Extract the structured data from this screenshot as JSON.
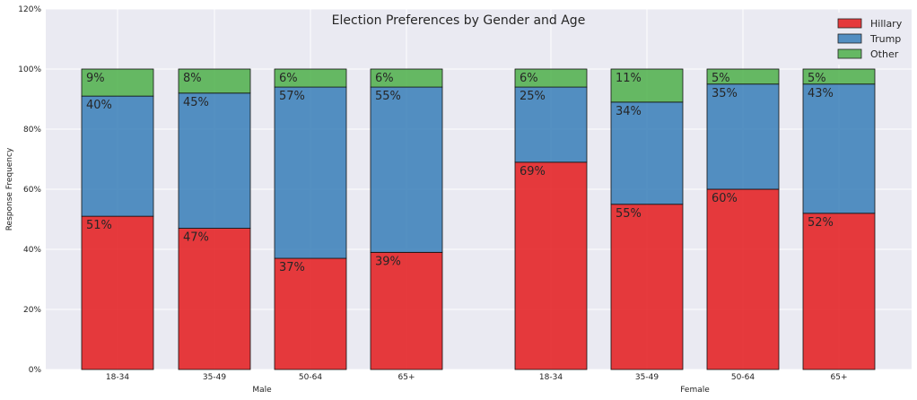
{
  "chart_data": {
    "type": "bar",
    "stacked": true,
    "title": "Election Preferences by Gender and Age",
    "ylabel": "Response Frequency",
    "ylim": [
      0,
      120
    ],
    "yticks": [
      0,
      20,
      40,
      60,
      80,
      100,
      120
    ],
    "ytick_labels": [
      "0%",
      "20%",
      "40%",
      "60%",
      "80%",
      "100%",
      "120%"
    ],
    "grid": true,
    "legend_position": "top-right",
    "groups": [
      {
        "name": "Male",
        "categories": [
          "18-34",
          "35-49",
          "50-64",
          "65+"
        ]
      },
      {
        "name": "Female",
        "categories": [
          "18-34",
          "35-49",
          "50-64",
          "65+"
        ]
      }
    ],
    "series": [
      {
        "name": "Hillary",
        "color": "#e41a1c",
        "values": [
          51,
          47,
          37,
          39,
          69,
          55,
          60,
          52
        ],
        "labels": [
          "51%",
          "47%",
          "37%",
          "39%",
          "69%",
          "55%",
          "60%",
          "52%"
        ]
      },
      {
        "name": "Trump",
        "color": "#377eb8",
        "values": [
          40,
          45,
          57,
          55,
          25,
          34,
          35,
          43
        ],
        "labels": [
          "40%",
          "45%",
          "57%",
          "55%",
          "25%",
          "34%",
          "35%",
          "43%"
        ]
      },
      {
        "name": "Other",
        "color": "#4daf4a",
        "values": [
          9,
          8,
          6,
          6,
          6,
          11,
          5,
          5
        ],
        "labels": [
          "9%",
          "8%",
          "6%",
          "6%",
          "6%",
          "11%",
          "5%",
          "5%"
        ]
      }
    ]
  }
}
